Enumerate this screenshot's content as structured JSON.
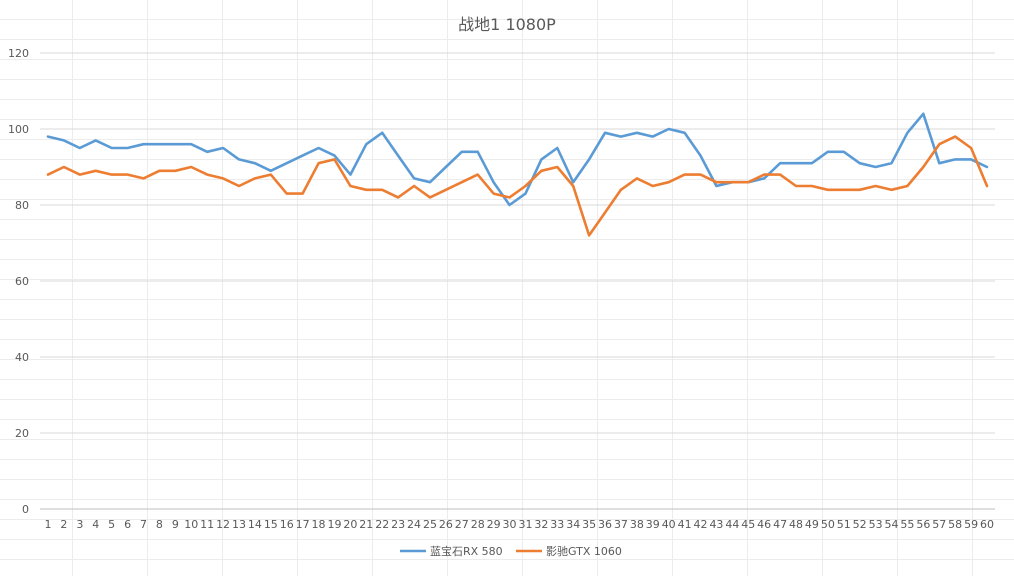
{
  "chart_data": {
    "type": "line",
    "title": "战地1 1080P",
    "xlabel": "",
    "ylabel": "",
    "ylim": [
      0,
      120
    ],
    "yticks": [
      0,
      20,
      40,
      60,
      80,
      100,
      120
    ],
    "grid": true,
    "legend_position": "bottom",
    "x": [
      1,
      2,
      3,
      4,
      5,
      6,
      7,
      8,
      9,
      10,
      11,
      12,
      13,
      14,
      15,
      16,
      17,
      18,
      19,
      20,
      21,
      22,
      23,
      24,
      25,
      26,
      27,
      28,
      29,
      30,
      31,
      32,
      33,
      34,
      35,
      36,
      37,
      38,
      39,
      40,
      41,
      42,
      43,
      44,
      45,
      46,
      47,
      48,
      49,
      50,
      51,
      52,
      53,
      54,
      55,
      56,
      57,
      58,
      59,
      60
    ],
    "series": [
      {
        "name": "蓝宝石RX 580",
        "color": "#5b9bd5",
        "values": [
          98,
          97,
          95,
          97,
          95,
          95,
          96,
          96,
          96,
          96,
          94,
          95,
          92,
          91,
          89,
          91,
          93,
          95,
          93,
          88,
          96,
          99,
          93,
          87,
          86,
          90,
          94,
          94,
          86,
          80,
          83,
          92,
          95,
          86,
          92,
          99,
          98,
          99,
          98,
          100,
          99,
          93,
          85,
          86,
          86,
          87,
          91,
          91,
          91,
          94,
          94,
          91,
          90,
          91,
          99,
          104,
          91,
          92,
          92,
          90
        ]
      },
      {
        "name": "影驰GTX 1060",
        "color": "#ed7d31",
        "values": [
          88,
          90,
          88,
          89,
          88,
          88,
          87,
          89,
          89,
          90,
          88,
          87,
          85,
          87,
          88,
          83,
          83,
          91,
          92,
          85,
          84,
          84,
          82,
          85,
          82,
          84,
          86,
          88,
          83,
          82,
          85,
          89,
          90,
          85,
          72,
          78,
          84,
          87,
          85,
          86,
          88,
          88,
          86,
          86,
          86,
          88,
          88,
          85,
          85,
          84,
          84,
          84,
          85,
          84,
          85,
          90,
          96,
          98,
          95,
          85
        ]
      }
    ]
  }
}
